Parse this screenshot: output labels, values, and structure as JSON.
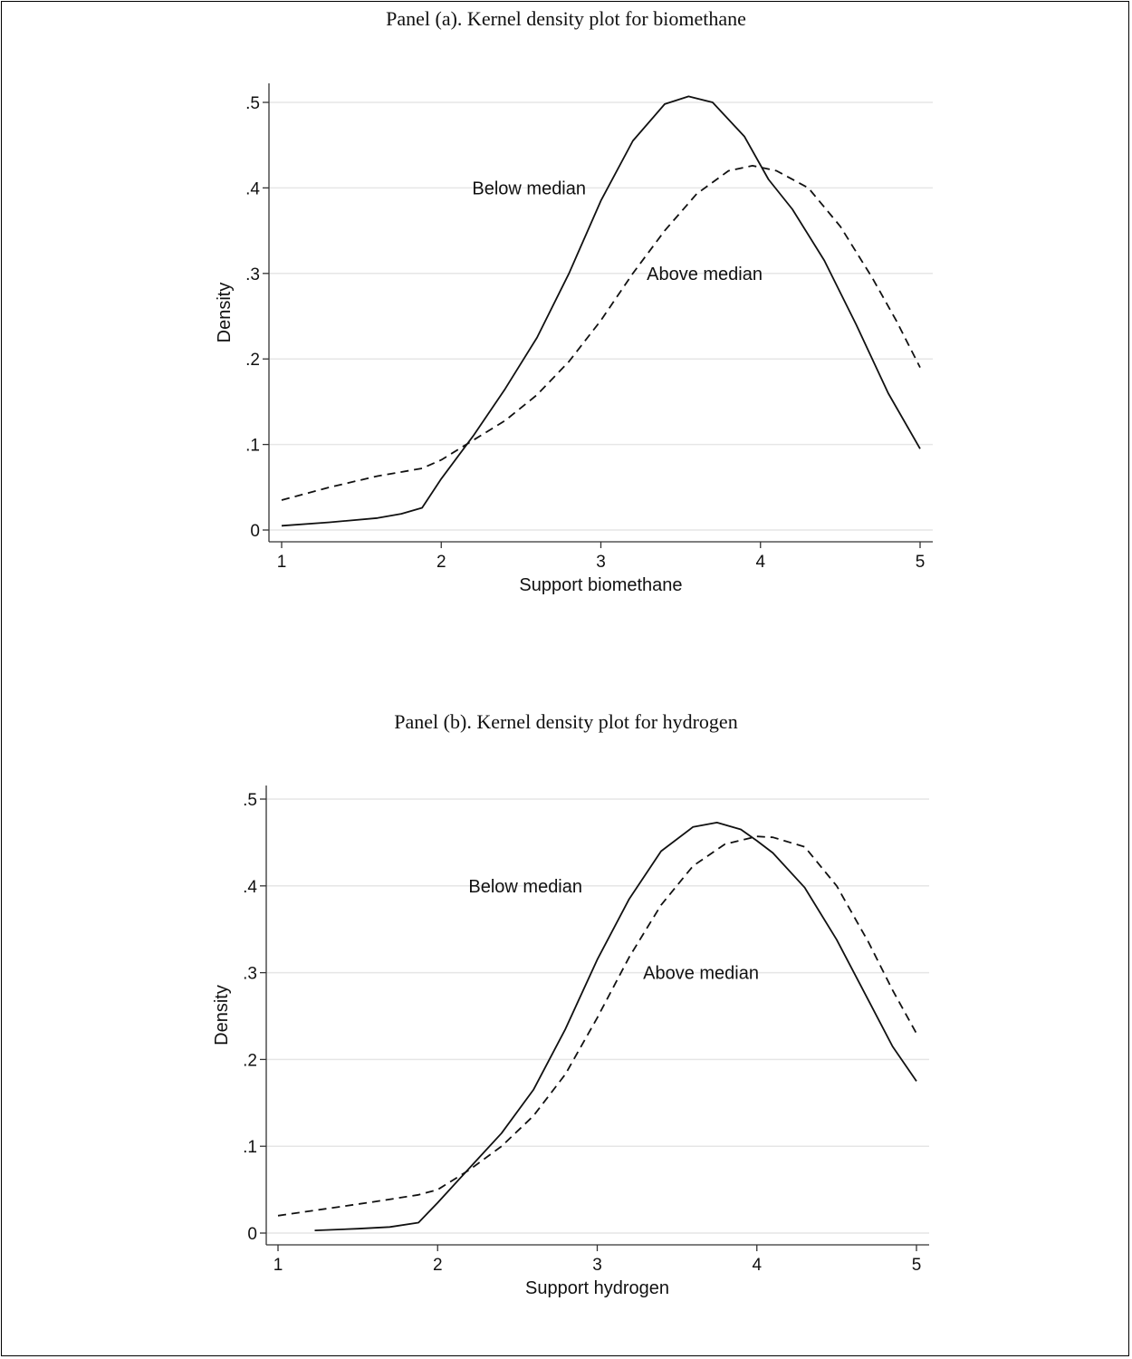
{
  "panels": [
    {
      "title": "Panel (a). Kernel density plot for biomethane"
    },
    {
      "title": "Panel (b). Kernel density plot for hydrogen"
    }
  ],
  "chart_data": [
    {
      "type": "line",
      "title": "Panel (a). Kernel density plot for biomethane",
      "xlabel": "Support biomethane",
      "ylabel": "Density",
      "xlim": [
        1,
        5
      ],
      "ylim": [
        0,
        0.5
      ],
      "x_ticks": [
        1,
        2,
        3,
        4,
        5
      ],
      "x_tick_labels": [
        "1",
        "2",
        "3",
        "4",
        "5"
      ],
      "y_ticks": [
        0,
        0.1,
        0.2,
        0.3,
        0.4,
        0.5
      ],
      "y_tick_labels": [
        "0",
        ".1",
        ".2",
        ".3",
        ".4",
        ".5"
      ],
      "grid": true,
      "series": [
        {
          "name": "Below median",
          "line_style": "solid",
          "x": [
            1.0,
            1.3,
            1.6,
            1.75,
            1.88,
            2.0,
            2.2,
            2.4,
            2.6,
            2.8,
            3.0,
            3.2,
            3.4,
            3.55,
            3.7,
            3.9,
            4.05,
            4.2,
            4.4,
            4.6,
            4.8,
            5.0
          ],
          "y": [
            0.005,
            0.009,
            0.014,
            0.019,
            0.026,
            0.06,
            0.11,
            0.165,
            0.225,
            0.3,
            0.385,
            0.455,
            0.498,
            0.507,
            0.5,
            0.46,
            0.41,
            0.375,
            0.315,
            0.24,
            0.16,
            0.095
          ]
        },
        {
          "name": "Above median",
          "line_style": "dashed",
          "x": [
            1.0,
            1.3,
            1.6,
            1.88,
            2.0,
            2.2,
            2.4,
            2.6,
            2.8,
            3.0,
            3.2,
            3.4,
            3.6,
            3.8,
            3.95,
            4.1,
            4.3,
            4.5,
            4.7,
            4.85,
            5.0
          ],
          "y": [
            0.035,
            0.05,
            0.063,
            0.072,
            0.082,
            0.105,
            0.128,
            0.158,
            0.197,
            0.245,
            0.3,
            0.35,
            0.393,
            0.42,
            0.426,
            0.42,
            0.4,
            0.355,
            0.295,
            0.245,
            0.19
          ]
        }
      ],
      "annotations": [
        {
          "text": "Below median",
          "x": 2.55,
          "y": 0.4
        },
        {
          "text": "Above median",
          "x": 3.65,
          "y": 0.3
        }
      ]
    },
    {
      "type": "line",
      "title": "Panel (b). Kernel density plot for hydrogen",
      "xlabel": "Support hydrogen",
      "ylabel": "Density",
      "xlim": [
        1,
        5
      ],
      "ylim": [
        0,
        0.5
      ],
      "x_ticks": [
        1,
        2,
        3,
        4,
        5
      ],
      "x_tick_labels": [
        "1",
        "2",
        "3",
        "4",
        "5"
      ],
      "y_ticks": [
        0,
        0.1,
        0.2,
        0.3,
        0.4,
        0.5
      ],
      "y_tick_labels": [
        "0",
        ".1",
        ".2",
        ".3",
        ".4",
        ".5"
      ],
      "grid": true,
      "series": [
        {
          "name": "Below median",
          "line_style": "solid",
          "x": [
            1.23,
            1.5,
            1.7,
            1.88,
            2.0,
            2.2,
            2.4,
            2.6,
            2.8,
            3.0,
            3.2,
            3.4,
            3.6,
            3.75,
            3.9,
            4.0,
            4.1,
            4.3,
            4.5,
            4.7,
            4.85,
            5.0
          ],
          "y": [
            0.003,
            0.005,
            0.007,
            0.012,
            0.035,
            0.075,
            0.115,
            0.165,
            0.235,
            0.315,
            0.385,
            0.44,
            0.468,
            0.473,
            0.465,
            0.452,
            0.438,
            0.398,
            0.338,
            0.268,
            0.215,
            0.175
          ]
        },
        {
          "name": "Above median",
          "line_style": "dashed",
          "x": [
            1.0,
            1.3,
            1.6,
            1.88,
            2.0,
            2.2,
            2.4,
            2.6,
            2.8,
            3.0,
            3.2,
            3.4,
            3.6,
            3.8,
            4.0,
            4.1,
            4.3,
            4.5,
            4.7,
            4.85,
            5.0
          ],
          "y": [
            0.02,
            0.028,
            0.036,
            0.044,
            0.05,
            0.073,
            0.1,
            0.135,
            0.183,
            0.248,
            0.318,
            0.378,
            0.423,
            0.448,
            0.457,
            0.456,
            0.445,
            0.4,
            0.335,
            0.28,
            0.23
          ]
        }
      ],
      "annotations": [
        {
          "text": "Below median",
          "x": 2.55,
          "y": 0.4
        },
        {
          "text": "Above median",
          "x": 3.65,
          "y": 0.3
        }
      ]
    }
  ]
}
